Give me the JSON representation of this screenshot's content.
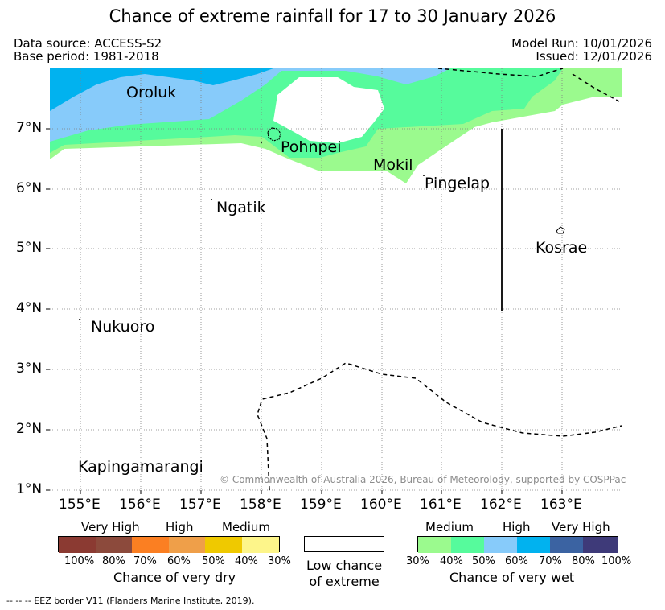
{
  "title": "Chance of extreme rainfall for 17 to 30 January 2026",
  "meta": {
    "data_source": "Data source: ACCESS-S2",
    "base_period": "Base period: 1981-2018",
    "model_run": "Model Run: 10/01/2026",
    "issued": "Issued: 12/01/2026"
  },
  "map": {
    "lon_labels": [
      "155°E",
      "156°E",
      "157°E",
      "158°E",
      "159°E",
      "160°E",
      "161°E",
      "162°E",
      "163°E"
    ],
    "lat_labels": [
      "7°N",
      "6°N",
      "5°N",
      "4°N",
      "3°N",
      "2°N",
      "1°N"
    ],
    "places": [
      {
        "name": "Oroluk"
      },
      {
        "name": "Pohnpei"
      },
      {
        "name": "Mokil"
      },
      {
        "name": "Pingelap"
      },
      {
        "name": "Ngatik"
      },
      {
        "name": "Kosrae"
      },
      {
        "name": "Nukuoro"
      },
      {
        "name": "Kapingamarangi"
      }
    ],
    "copyright": "© Commonwealth of Australia 2026, Bureau of Meteorology, supported by COSPPac"
  },
  "legend": {
    "dry": {
      "groups": [
        "Very High",
        "High",
        "Medium"
      ],
      "percent_labels": [
        "100%",
        "80%",
        "70%",
        "60%",
        "50%",
        "40%",
        "30%"
      ],
      "colors": [
        "#8b3a32",
        "#8c4a3c",
        "#fb7f22",
        "#ef9f49",
        "#efc900",
        "#fdf58a"
      ],
      "caption": "Chance of very dry"
    },
    "low": {
      "caption_line1": "Low chance",
      "caption_line2": "of extreme"
    },
    "wet": {
      "groups": [
        "Medium",
        "High",
        "Very High"
      ],
      "percent_labels": [
        "30%",
        "40%",
        "50%",
        "60%",
        "70%",
        "80%",
        "100%"
      ],
      "colors": [
        "#9bfa8e",
        "#56fb9c",
        "#87cbfa",
        "#01b2ef",
        "#3b63a2",
        "#3e3a79"
      ],
      "caption": "Chance of very wet"
    }
  },
  "footnote": "-- -- -- EEZ border V11 (Flanders Marine Institute, 2019)."
}
